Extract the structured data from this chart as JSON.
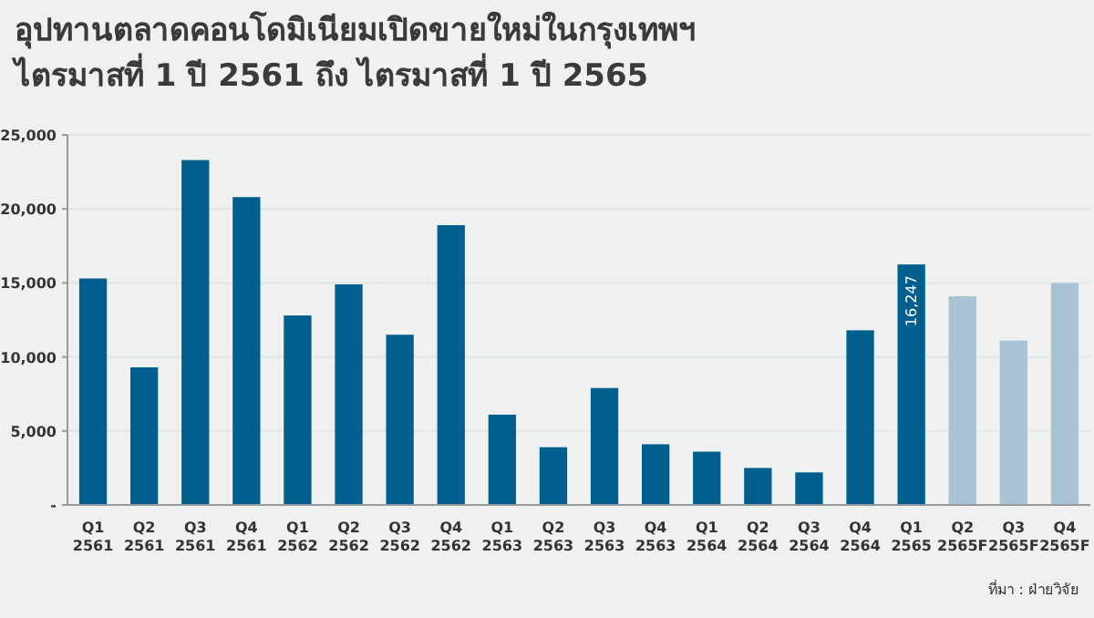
{
  "chart_data": {
    "type": "bar",
    "title": "อุปทานตลาดคอนโดมิเนียมเปิดขายใหม่ในกรุงเทพฯ",
    "subtitle": "ไตรมาสที่ 1 ปี 2561 ถึง ไตรมาสที่ 1 ปี 2565",
    "categories": [
      "Q1\n2561",
      "Q2\n2561",
      "Q3\n2561",
      "Q4\n2561",
      "Q1\n2562",
      "Q2\n2562",
      "Q3\n2562",
      "Q4\n2562",
      "Q1\n2563",
      "Q2\n2563",
      "Q3\n2563",
      "Q4\n2563",
      "Q1\n2564",
      "Q2\n2564",
      "Q3\n2564",
      "Q4\n2564",
      "Q1\n2565",
      "Q2\n2565F",
      "Q3\n2565F",
      "Q4\n2565F"
    ],
    "values": [
      15300,
      9300,
      23300,
      20800,
      12800,
      14900,
      11500,
      18900,
      6100,
      3900,
      7900,
      4100,
      3600,
      2500,
      2200,
      11800,
      16247,
      14100,
      11100,
      15000
    ],
    "colors": [
      "#005f8f",
      "#005f8f",
      "#005f8f",
      "#005f8f",
      "#005f8f",
      "#005f8f",
      "#005f8f",
      "#005f8f",
      "#005f8f",
      "#005f8f",
      "#005f8f",
      "#005f8f",
      "#005f8f",
      "#005f8f",
      "#005f8f",
      "#005f8f",
      "#005f8f",
      "#a8c3d6",
      "#a8c3d6",
      "#a8c3d6"
    ],
    "value_labels": [
      null,
      null,
      null,
      null,
      null,
      null,
      null,
      null,
      null,
      null,
      null,
      null,
      null,
      null,
      null,
      null,
      "16,247",
      null,
      null,
      null
    ],
    "ylim": [
      0,
      25000
    ],
    "yticks": [
      {
        "value": 0,
        "label": "-"
      },
      {
        "value": 5000,
        "label": "5,000"
      },
      {
        "value": 10000,
        "label": "10,000"
      },
      {
        "value": 15000,
        "label": "15,000"
      },
      {
        "value": 20000,
        "label": "20,000"
      },
      {
        "value": 25000,
        "label": "25,000"
      }
    ],
    "grid": "y",
    "annotations": [
      "ที่มา : ฝ่ายวิจัย"
    ]
  }
}
